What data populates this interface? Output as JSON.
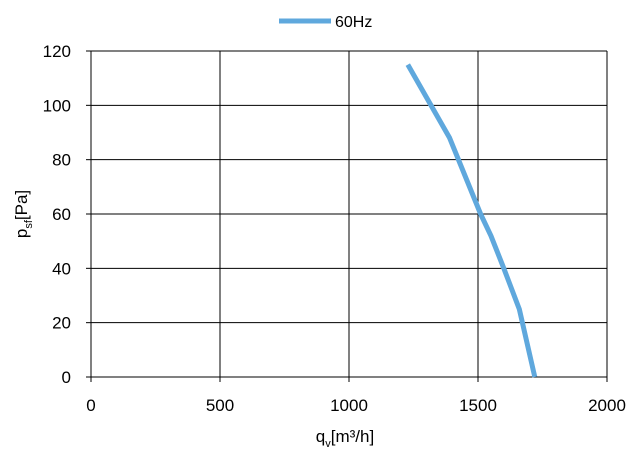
{
  "chart_data": {
    "type": "line",
    "title": "",
    "xlabel": {
      "base": "q",
      "sub": "v",
      "rest": "[m³/h]"
    },
    "ylabel": {
      "base": "p",
      "sub": "sf",
      "rest": "[Pa]"
    },
    "xlim": [
      0,
      2000
    ],
    "ylim": [
      0,
      120
    ],
    "xticks": [
      0,
      500,
      1000,
      1500,
      2000
    ],
    "yticks": [
      0,
      20,
      40,
      60,
      80,
      100,
      120
    ],
    "grid": true,
    "legend_position": "top-center",
    "series": [
      {
        "name": "60Hz",
        "color": "#5fa8dd",
        "x": [
          1228,
          1300,
          1390,
          1510,
          1550,
          1600,
          1660,
          1720
        ],
        "y": [
          115,
          103,
          88,
          60,
          52,
          40,
          25,
          0
        ]
      }
    ]
  }
}
